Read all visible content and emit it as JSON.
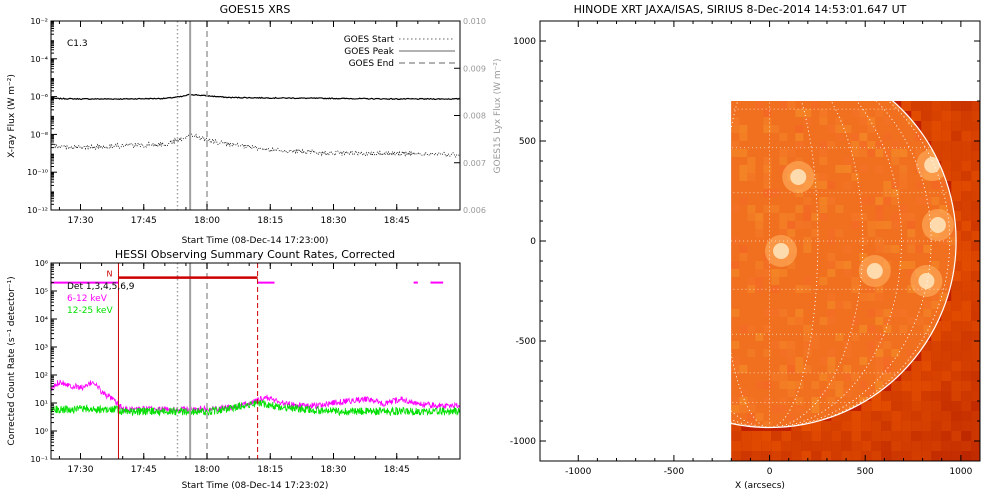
{
  "goes_panel": {
    "title": "GOES15 XRS",
    "class_label": "C1.3",
    "xlabel": "Start Time (08-Dec-14 17:23:00)",
    "ylabel_left": "X-ray Flux (W m⁻²)",
    "ylabel_right": "GOES15 Lyx Flux (W m⁻²)",
    "legend": [
      {
        "label": "GOES Start",
        "style": "dotted"
      },
      {
        "label": "GOES Peak",
        "style": "solid"
      },
      {
        "label": "GOES End",
        "style": "dashed"
      }
    ]
  },
  "hessi_panel": {
    "title": "HESSI Observing Summary Count Rates, Corrected",
    "xlabel": "Start Time (08-Dec-14 17:23:02)",
    "ylabel": "Corrected Count Rate (s⁻¹ detector⁻¹)",
    "flag_label": "N",
    "legend": [
      {
        "label": "Det 1,3,4,5,6,9",
        "color": "#000000"
      },
      {
        "label": "6-12 keV",
        "color": "#ff00ff"
      },
      {
        "label": "12-25 keV",
        "color": "#00e000"
      }
    ]
  },
  "xrt_panel": {
    "title": "HINODE XRT JAXA/ISAS, SIRIUS   8-Dec-2014 14:53:01.647 UT",
    "xlabel": "X (arcsecs)"
  },
  "colors": {
    "disk_base": "#f07020",
    "disk_bright": "#ffe6c0",
    "limb_dark": "#c02000",
    "hessi_magenta": "#ff00ff",
    "hessi_green": "#00e000",
    "hessi_red": "#cc0000",
    "goes_curve": "#000000",
    "marker_gray": "#a0a0a0"
  },
  "chart_data": [
    {
      "type": "line",
      "title": "GOES15 XRS",
      "xlabel": "Start Time (08-Dec-14 17:23:00)",
      "ylabel": "X-ray Flux (W m⁻²)",
      "y2label": "GOES15 Lyx Flux (W m⁻²)",
      "yscale": "log",
      "ylim": [
        1e-12,
        0.01
      ],
      "y2lim": [
        0.006,
        0.01
      ],
      "xlim": [
        "17:23",
        "19:00"
      ],
      "xticks": [
        "17:30",
        "17:45",
        "18:00",
        "18:15",
        "18:30",
        "18:45"
      ],
      "yticks": [
        "10⁻¹²",
        "10⁻¹⁰",
        "10⁻⁸",
        "10⁻⁶",
        "10⁻⁴",
        "10⁻²"
      ],
      "y2ticks": [
        "0.006",
        "0.007",
        "0.008",
        "0.009",
        "0.010"
      ],
      "annotation": "C1.3",
      "markers": {
        "start": "17:53",
        "peak": "17:56",
        "end": "18:00"
      },
      "series": [
        {
          "name": "",
          "style": "solid",
          "x": [
            "17:23",
            "17:30",
            "17:40",
            "17:50",
            "17:54",
            "17:56",
            "18:00",
            "18:05",
            "18:15",
            "18:30",
            "18:45",
            "19:00"
          ],
          "y": [
            8e-07,
            7.5e-07,
            7.5e-07,
            8e-07,
            1e-06,
            1.3e-06,
            1.1e-06,
            9e-07,
            8.5e-07,
            8e-07,
            7.5e-07,
            7.5e-07
          ]
        },
        {
          "name": "",
          "style": "dotted",
          "x": [
            "17:23",
            "17:30",
            "17:40",
            "17:50",
            "17:54",
            "17:56",
            "18:00",
            "18:05",
            "18:15",
            "18:30",
            "18:45",
            "19:00"
          ],
          "y": [
            2.5e-09,
            2e-09,
            2.5e-09,
            3e-09,
            6e-09,
            1e-08,
            5e-09,
            3e-09,
            1.5e-09,
            1e-09,
            1e-09,
            8e-10
          ]
        }
      ]
    },
    {
      "type": "line",
      "title": "HESSI Observing Summary Count Rates, Corrected",
      "xlabel": "Start Time (08-Dec-14 17:23:02)",
      "ylabel": "Corrected Count Rate (s⁻¹ detector⁻¹)",
      "yscale": "log",
      "ylim": [
        0.1,
        1000000.0
      ],
      "xlim": [
        "17:23",
        "19:00"
      ],
      "xticks": [
        "17:30",
        "17:45",
        "18:00",
        "18:15",
        "18:30",
        "18:45"
      ],
      "yticks": [
        "10⁻¹",
        "10⁰",
        "10¹",
        "10²",
        "10³",
        "10⁴",
        "10⁵",
        "10⁶"
      ],
      "legend_header": "Det 1,3,4,5,6,9",
      "markers": {
        "goes_start": "17:53",
        "goes_peak": "17:56",
        "goes_end": "18:00",
        "interval_start": "17:39",
        "interval_end": "18:12"
      },
      "flag_bar": {
        "label": "N",
        "from": "17:39",
        "to": "18:12",
        "level": 300000.0
      },
      "series": [
        {
          "name": "6-12 keV",
          "color": "#ff00ff",
          "x": [
            "17:23",
            "17:25",
            "17:28",
            "17:31",
            "17:33",
            "17:35",
            "17:38",
            "17:40",
            "17:45",
            "17:50",
            "17:55",
            "18:00",
            "18:05",
            "18:08",
            "18:12",
            "18:14",
            "18:18",
            "18:22",
            "18:26",
            "18:30",
            "18:34",
            "18:38",
            "18:42",
            "18:46",
            "18:50",
            "18:55",
            "19:00"
          ],
          "y": [
            30,
            60,
            40,
            35,
            60,
            25,
            12,
            6,
            6,
            6,
            6,
            6,
            7,
            8,
            12,
            16,
            10,
            8,
            8,
            10,
            12,
            14,
            9,
            14,
            9,
            8,
            8
          ]
        },
        {
          "name": "12-25 keV",
          "color": "#00e000",
          "x": [
            "17:23",
            "17:30",
            "17:38",
            "17:40",
            "17:45",
            "17:50",
            "17:55",
            "18:00",
            "18:05",
            "18:08",
            "18:12",
            "18:14",
            "18:18",
            "18:22",
            "18:30",
            "18:40",
            "18:50",
            "19:00"
          ],
          "y": [
            6,
            6,
            6,
            5,
            5,
            5,
            5,
            5,
            6,
            8,
            10,
            9,
            7,
            6,
            5,
            5,
            5,
            5
          ]
        },
        {
          "name": "",
          "color": "#ff00ff",
          "style": "segments",
          "x": [
            [
              "17:23",
              "17:39"
            ],
            [
              "18:12",
              "18:16"
            ],
            [
              "18:49",
              "18:50"
            ],
            [
              "18:53",
              "18:56"
            ]
          ],
          "y": [
            200000.0,
            200000.0,
            200000.0,
            200000.0
          ]
        }
      ]
    },
    {
      "type": "image",
      "title": "HINODE XRT JAXA/ISAS, SIRIUS   8-Dec-2014 14:53:01.647 UT",
      "xlabel": "X (arcsecs)",
      "xlim": [
        -1200,
        1100
      ],
      "ylim": [
        -1100,
        1100
      ],
      "xticks": [
        "-1000",
        "-500",
        "0",
        "500",
        "1000"
      ],
      "yticks": [
        "-1000",
        "-500",
        "0",
        "500",
        "1000"
      ],
      "image_field": {
        "x": [
          -200,
          1100
        ],
        "y": [
          -1100,
          700
        ]
      },
      "solar_radius": 975,
      "bright_regions": [
        {
          "x": 150,
          "y": 320
        },
        {
          "x": 850,
          "y": 380
        },
        {
          "x": 60,
          "y": -50
        },
        {
          "x": 880,
          "y": 80
        },
        {
          "x": 820,
          "y": -200
        },
        {
          "x": 550,
          "y": -150
        }
      ]
    }
  ]
}
